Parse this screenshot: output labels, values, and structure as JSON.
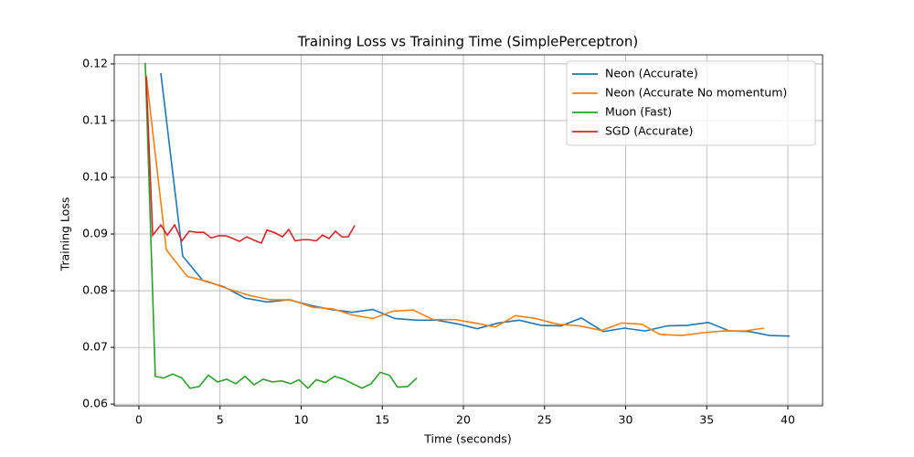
{
  "chart_data": {
    "type": "line",
    "title": "Training Loss vs Training Time (SimplePerceptron)",
    "x_label": "Time (seconds)",
    "y_label": "Training Loss",
    "xlim": [
      -1.52,
      42.14
    ],
    "ylim": [
      0.0597,
      0.1216
    ],
    "xticks": [
      0,
      5,
      10,
      15,
      20,
      25,
      30,
      35,
      40
    ],
    "yticks": [
      0.06,
      0.07,
      0.08,
      0.09,
      {
        "value": 0.1,
        "label": "0.10"
      },
      0.11,
      0.12
    ],
    "grid": true,
    "legend": "upper right",
    "series": [
      {
        "name": "Neon (Accurate)",
        "color": "#1f77b4",
        "x": [
          1.35,
          2.7,
          3.94,
          5.24,
          6.54,
          7.89,
          9.24,
          10.59,
          11.83,
          13.13,
          14.42,
          15.77,
          17.13,
          18.37,
          19.72,
          20.85,
          22.14,
          23.44,
          24.79,
          26.03,
          27.27,
          28.62,
          29.92,
          31.21,
          32.56,
          33.8,
          35.1,
          36.39,
          37.63,
          38.87,
          40.11
        ],
        "values": [
          0.1184,
          0.0861,
          0.0818,
          0.0807,
          0.0787,
          0.078,
          0.0784,
          0.0774,
          0.0767,
          0.0762,
          0.0767,
          0.0751,
          0.0748,
          0.0748,
          0.0741,
          0.0733,
          0.0743,
          0.0748,
          0.0739,
          0.0738,
          0.0752,
          0.0728,
          0.0734,
          0.0729,
          0.0738,
          0.0739,
          0.0744,
          0.0729,
          0.0728,
          0.0721,
          0.072
        ]
      },
      {
        "name": "Neon (Accurate No momentum)",
        "color": "#ff7f0e",
        "x": [
          0.45,
          1.69,
          2.99,
          4.28,
          5.52,
          6.76,
          8.11,
          9.35,
          10.7,
          11.94,
          13.18,
          14.42,
          15.66,
          16.9,
          18.14,
          19.49,
          20.73,
          21.97,
          23.21,
          24.45,
          25.8,
          27.15,
          28.51,
          29.75,
          30.99,
          32.11,
          33.46,
          34.82,
          36.06,
          37.3,
          38.54
        ],
        "values": [
          0.118,
          0.0872,
          0.0825,
          0.0816,
          0.0803,
          0.0792,
          0.0784,
          0.0784,
          0.0771,
          0.0768,
          0.0757,
          0.0751,
          0.0764,
          0.0766,
          0.0749,
          0.0749,
          0.0743,
          0.0736,
          0.0756,
          0.0751,
          0.0741,
          0.0738,
          0.073,
          0.0743,
          0.0741,
          0.0723,
          0.0721,
          0.0726,
          0.0729,
          0.0729,
          0.0734
        ]
      },
      {
        "name": "Muon (Fast)",
        "color": "#2ca02c",
        "x": [
          0.39,
          1.01,
          1.52,
          2.08,
          2.65,
          3.15,
          3.72,
          4.28,
          4.85,
          5.41,
          5.97,
          6.54,
          7.1,
          7.66,
          8.23,
          8.79,
          9.35,
          9.86,
          10.42,
          10.93,
          11.49,
          12.06,
          12.62,
          13.18,
          13.75,
          14.31,
          14.87,
          15.44,
          15.94,
          16.56,
          17.13
        ],
        "values": [
          0.1202,
          0.0649,
          0.0646,
          0.0653,
          0.0646,
          0.0628,
          0.0631,
          0.0651,
          0.0639,
          0.0644,
          0.0636,
          0.0649,
          0.0634,
          0.0644,
          0.0639,
          0.0641,
          0.0636,
          0.0643,
          0.0628,
          0.0643,
          0.0638,
          0.0649,
          0.0644,
          0.0636,
          0.0628,
          0.0636,
          0.0656,
          0.0651,
          0.063,
          0.0631,
          0.0646
        ]
      },
      {
        "name": "SGD (Accurate)",
        "color": "#d62728",
        "x": [
          0.45,
          0.85,
          1.35,
          1.75,
          2.2,
          2.65,
          3.1,
          3.55,
          4.0,
          4.45,
          4.9,
          5.35,
          5.8,
          6.2,
          6.65,
          7.1,
          7.55,
          7.89,
          8.39,
          8.85,
          9.24,
          9.63,
          10.08,
          10.48,
          10.93,
          11.32,
          11.72,
          12.11,
          12.51,
          12.9,
          13.3
        ],
        "values": [
          0.1177,
          0.0898,
          0.0916,
          0.0898,
          0.0916,
          0.0888,
          0.0905,
          0.0903,
          0.0903,
          0.0893,
          0.0897,
          0.0897,
          0.0892,
          0.0887,
          0.0895,
          0.0889,
          0.0884,
          0.0907,
          0.0902,
          0.0895,
          0.0908,
          0.0888,
          0.089,
          0.089,
          0.0888,
          0.0898,
          0.0892,
          0.0905,
          0.0895,
          0.0895,
          0.0915
        ]
      }
    ]
  }
}
